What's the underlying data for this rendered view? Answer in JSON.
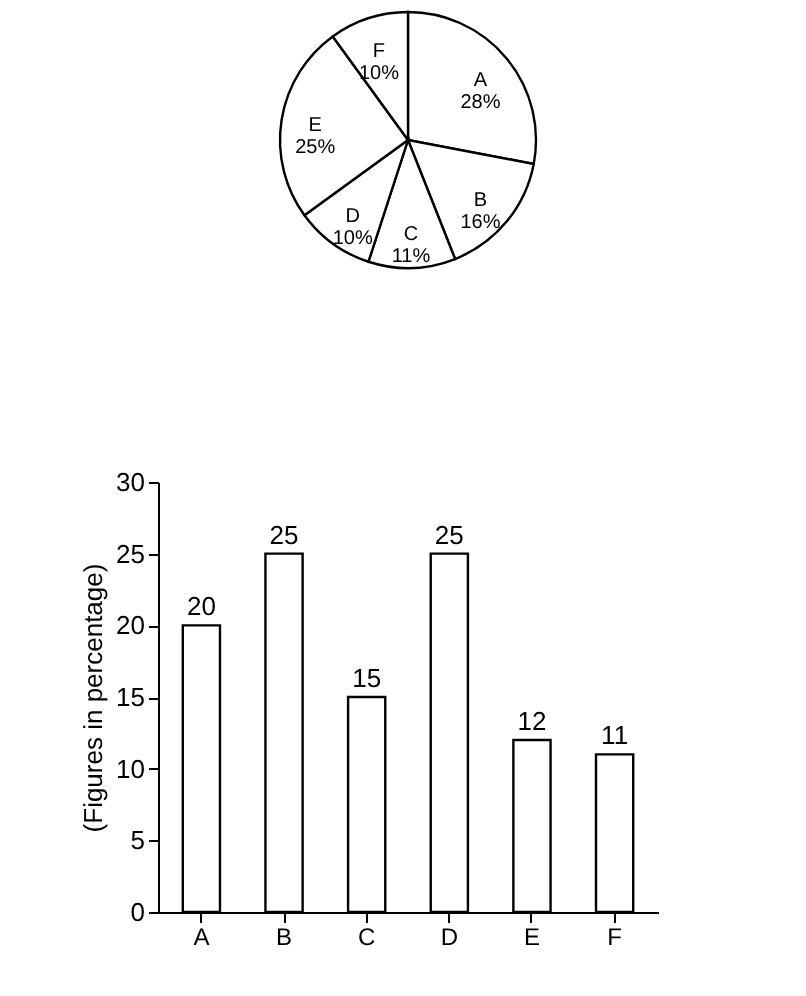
{
  "chart_data": [
    {
      "type": "pie",
      "categories": [
        "A",
        "B",
        "C",
        "D",
        "E",
        "F"
      ],
      "values": [
        28,
        16,
        11,
        10,
        25,
        10
      ],
      "colors": [
        "#ffffff",
        "#ffffff",
        "#ffffff",
        "#ffffff",
        "#ffffff",
        "#ffffff"
      ],
      "value_labels": [
        "28%",
        "16%",
        "11%",
        "10%",
        "25%",
        "10%"
      ]
    },
    {
      "type": "bar",
      "categories": [
        "A",
        "B",
        "C",
        "D",
        "E",
        "F"
      ],
      "values": [
        20,
        25,
        15,
        25,
        12,
        11
      ],
      "color": "#ffffff",
      "ylim": [
        0,
        30
      ],
      "yticks": [
        0,
        5,
        10,
        15,
        20,
        25,
        30
      ],
      "ylabel": "(Figures in percentage)",
      "data_labels": true
    }
  ]
}
